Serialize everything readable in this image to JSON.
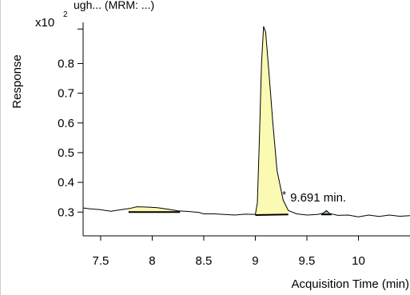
{
  "chart_data": {
    "type": "line",
    "title_partial": "ugh... (MRM: ...)",
    "xlabel": "Acquisition Time (min)",
    "ylabel": "Response",
    "y_multiplier": "x10",
    "y_exponent": "2",
    "x_ticks": [
      7.5,
      8,
      8.5,
      9,
      9.5,
      10
    ],
    "x_tick_labels": [
      "7.5",
      "8",
      "8.5",
      "9",
      "9.5",
      "10"
    ],
    "y_ticks": [
      0.3,
      0.4,
      0.5,
      0.6,
      0.7,
      0.8
    ],
    "y_tick_labels": [
      "0.3",
      "0.4",
      "0.5",
      "0.6",
      "0.7",
      "0.8"
    ],
    "xlim": [
      7.33,
      10.5
    ],
    "ylim": [
      0.22,
      0.96
    ],
    "trace": [
      [
        7.33,
        0.314
      ],
      [
        7.4,
        0.311
      ],
      [
        7.5,
        0.308
      ],
      [
        7.6,
        0.303
      ],
      [
        7.7,
        0.308
      ],
      [
        7.78,
        0.312
      ],
      [
        7.85,
        0.318
      ],
      [
        7.95,
        0.317
      ],
      [
        8.05,
        0.315
      ],
      [
        8.15,
        0.31
      ],
      [
        8.25,
        0.304
      ],
      [
        8.35,
        0.302
      ],
      [
        8.45,
        0.299
      ],
      [
        8.5,
        0.294
      ],
      [
        8.6,
        0.294
      ],
      [
        8.7,
        0.292
      ],
      [
        8.8,
        0.29
      ],
      [
        8.9,
        0.293
      ],
      [
        9.0,
        0.292
      ],
      [
        9.02,
        0.33
      ],
      [
        9.04,
        0.55
      ],
      [
        9.06,
        0.8
      ],
      [
        9.08,
        0.925
      ],
      [
        9.1,
        0.905
      ],
      [
        9.13,
        0.78
      ],
      [
        9.17,
        0.6
      ],
      [
        9.21,
        0.44
      ],
      [
        9.27,
        0.34
      ],
      [
        9.32,
        0.305
      ],
      [
        9.4,
        0.294
      ],
      [
        9.5,
        0.29
      ],
      [
        9.6,
        0.292
      ],
      [
        9.65,
        0.295
      ],
      [
        9.69,
        0.305
      ],
      [
        9.72,
        0.295
      ],
      [
        9.8,
        0.289
      ],
      [
        9.9,
        0.29
      ],
      [
        10.0,
        0.284
      ],
      [
        10.1,
        0.29
      ],
      [
        10.2,
        0.285
      ],
      [
        10.3,
        0.29
      ],
      [
        10.4,
        0.286
      ],
      [
        10.5,
        0.288
      ]
    ],
    "peaks": [
      {
        "x_start": 7.77,
        "x_end": 8.27,
        "baseline_start": 0.3,
        "baseline_end": 0.3,
        "fill": "#fafab2"
      },
      {
        "x_start": 9.0,
        "x_end": 9.32,
        "baseline_start": 0.29,
        "baseline_end": 0.292,
        "fill": "#fafab2"
      },
      {
        "x_start": 9.64,
        "x_end": 9.74,
        "baseline_start": 0.292,
        "baseline_end": 0.292,
        "fill": "#8fc3a4"
      }
    ],
    "annotations": [
      {
        "marker": "*",
        "text": "9.691 min.",
        "x": 9.26,
        "y": 0.32
      }
    ],
    "grid": false
  }
}
